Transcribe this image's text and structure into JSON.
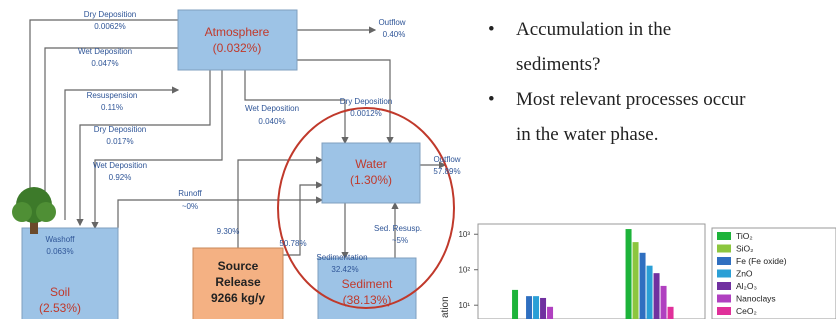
{
  "diagram": {
    "nodes": [
      {
        "lines": [
          "Atmosphere",
          "(0.032%)"
        ]
      },
      {
        "lines": [
          "Water",
          "(1.30%)"
        ]
      },
      {
        "lines": [
          "Soil",
          "(2.53%)"
        ]
      },
      {
        "lines": [
          "Sediment",
          "(38.13%)"
        ]
      },
      {
        "lines": [
          "Source",
          "Release",
          "9266 kg/y"
        ]
      }
    ],
    "edge_labels": [
      {
        "lines": [
          "Dry Deposition",
          "0.0062%"
        ]
      },
      {
        "lines": [
          "Wet Deposition",
          "0.047%"
        ]
      },
      {
        "lines": [
          "Resuspension",
          "0.11%"
        ]
      },
      {
        "lines": [
          "Dry Deposition",
          "0.017%"
        ]
      },
      {
        "lines": [
          "Wet Deposition",
          "0.92%"
        ]
      },
      {
        "lines": [
          "Outflow",
          "0.40%"
        ]
      },
      {
        "lines": [
          "Dry Deposition",
          "0.0012%"
        ]
      },
      {
        "lines": [
          "Wet Deposition",
          "0.040%"
        ]
      },
      {
        "lines": [
          "Runoff",
          "~0%"
        ]
      },
      {
        "lines": [
          "9.30%"
        ]
      },
      {
        "lines": [
          "50.78%"
        ]
      },
      {
        "lines": [
          "Outflow",
          "57.89%"
        ]
      },
      {
        "lines": [
          "Sedimentation",
          "32.42%"
        ]
      },
      {
        "lines": [
          "Sed. Resusp.",
          "~5%"
        ]
      },
      {
        "lines": [
          "Washoff",
          "0.063%"
        ]
      }
    ]
  },
  "bullets": [
    {
      "lines": [
        "Accumulation in the",
        "sediments?"
      ]
    },
    {
      "lines": [
        "Most relevant processes occur",
        "in the water phase."
      ]
    }
  ],
  "chart_data": {
    "type": "bar",
    "ylabel": "ation",
    "log_scale": true,
    "categories": [
      null,
      null
    ],
    "ylim": [
      2,
      1500
    ],
    "yticks": [
      {
        "value": 10,
        "label": "10¹"
      },
      {
        "value": 100,
        "label": "10²"
      },
      {
        "value": 1000,
        "label": "10³"
      }
    ],
    "series": [
      {
        "name": "TiO₂",
        "color": "#1db33a",
        "values": [
          27,
          1400
        ]
      },
      {
        "name": "SiO₂",
        "color": "#8cc63e",
        "values": [
          null,
          600
        ]
      },
      {
        "name": "Fe (Fe oxide)",
        "color": "#2f6fc0",
        "values": [
          18,
          300
        ]
      },
      {
        "name": "ZnO",
        "color": "#2a9fd6",
        "values": [
          18,
          130
        ]
      },
      {
        "name": "Al₂O₃",
        "color": "#7030a0",
        "values": [
          16,
          80
        ]
      },
      {
        "name": "Nanoclays",
        "color": "#b040c0",
        "values": [
          9,
          35
        ]
      },
      {
        "name": "CeO₂",
        "color": "#e0309a",
        "values": [
          null,
          9
        ]
      }
    ]
  }
}
